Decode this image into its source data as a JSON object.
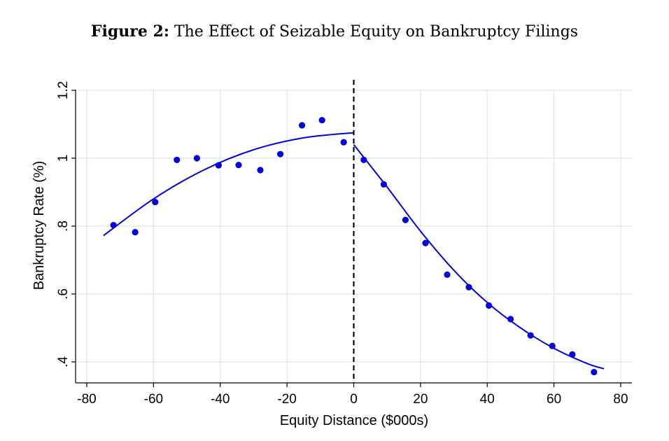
{
  "chart_data": {
    "type": "scatter",
    "title_prefix": "Figure 2:",
    "title": "The Effect of Seizable Equity on Bankruptcy Filings",
    "xlabel": "Equity Distance ($000s)",
    "ylabel": "Bankruptcy Rate (%)",
    "xlim": [
      -80,
      80
    ],
    "ylim": [
      0.4,
      1.2
    ],
    "xticks": [
      -80,
      -60,
      -40,
      -20,
      0,
      20,
      40,
      60,
      80
    ],
    "xtick_labels": [
      "-80",
      "-60",
      "-40",
      "-20",
      "0",
      "20",
      "40",
      "60",
      "80"
    ],
    "yticks": [
      0.4,
      0.6,
      0.8,
      1.0,
      1.2
    ],
    "ytick_labels": [
      ".4",
      ".6",
      ".8",
      "1",
      "1.2"
    ],
    "grid": true,
    "cutoff_x": 0,
    "colors": {
      "points": "#0000e0",
      "fit": "#0000e0",
      "grid": "#dce8e8",
      "cutoff": "#000000"
    },
    "points": {
      "x": [
        -72,
        -65.5,
        -59.5,
        -53,
        -47,
        -40.5,
        -34.5,
        -28,
        -22,
        -15.5,
        -9.5,
        -3,
        3,
        9,
        15.5,
        21.5,
        28,
        34.5,
        40.5,
        47,
        53,
        59.5,
        65.5,
        72
      ],
      "y": [
        0.803,
        0.782,
        0.871,
        0.995,
        1.0,
        0.979,
        0.98,
        0.965,
        1.012,
        1.097,
        1.112,
        1.047,
        0.995,
        0.923,
        0.818,
        0.75,
        0.657,
        0.62,
        0.566,
        0.526,
        0.478,
        0.447,
        0.422,
        0.37
      ]
    },
    "fit_left": {
      "x": [
        -75,
        -60,
        -45,
        -30,
        -15,
        0
      ],
      "y": [
        0.772,
        0.88,
        0.965,
        1.025,
        1.06,
        1.075
      ]
    },
    "fit_right": {
      "x": [
        0,
        10,
        20,
        30,
        40,
        50,
        60,
        70,
        75
      ],
      "y": [
        1.04,
        0.915,
        0.785,
        0.67,
        0.575,
        0.5,
        0.44,
        0.395,
        0.38
      ]
    }
  }
}
